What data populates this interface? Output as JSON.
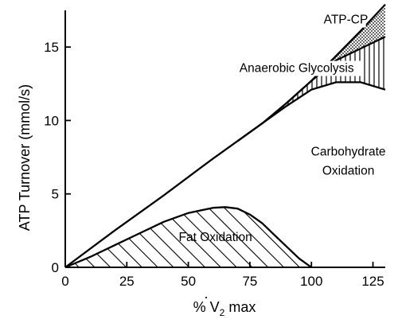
{
  "chart_data": {
    "type": "area",
    "title": "",
    "xlabel": "% V̇O2 max",
    "xlabel_parts": {
      "prefix": "% ",
      "symbol": "V",
      "subscript": "2",
      "suffix": " max"
    },
    "ylabel": "ATP Turnover (mmol/s)",
    "xlim": [
      0,
      130
    ],
    "ylim": [
      0,
      17.5
    ],
    "x_ticks": [
      0,
      25,
      50,
      75,
      100,
      125
    ],
    "y_ticks": [
      0,
      5,
      10,
      15
    ],
    "grid": false,
    "legend": "none",
    "fill_patterns": {
      "Fat Oxidation": "hatch-diagonal",
      "Carbohydrate Oxidation": "none",
      "Anaerobic Glycolysis": "hatch-vertical",
      "ATP-CP": "stipple"
    },
    "series": [
      {
        "name": "Fat Oxidation",
        "x": [
          0,
          10,
          20,
          30,
          40,
          50,
          60,
          65,
          70,
          75,
          80,
          85,
          90,
          95,
          100
        ],
        "y": [
          0,
          0.7,
          1.5,
          2.3,
          3.1,
          3.7,
          4.05,
          4.1,
          4.0,
          3.6,
          3.0,
          2.2,
          1.4,
          0.6,
          0
        ]
      },
      {
        "name": "Carbohydrate Oxidation",
        "x": [
          0,
          20,
          40,
          60,
          80,
          90,
          100,
          110,
          120,
          130
        ],
        "y": [
          0,
          2.5,
          4.9,
          7.4,
          9.8,
          11.0,
          12.1,
          12.6,
          12.6,
          12.1
        ]
      },
      {
        "name": "Anaerobic Glycolysis",
        "x": [
          70,
          80,
          90,
          100,
          110,
          120,
          130
        ],
        "y": [
          8.6,
          9.8,
          11.2,
          12.7,
          14.1,
          14.9,
          15.7
        ]
      },
      {
        "name": "ATP-CP",
        "x": [
          90,
          100,
          110,
          120,
          130
        ],
        "y": [
          11.2,
          12.7,
          14.4,
          16.1,
          17.9
        ]
      }
    ],
    "annotations": [
      {
        "label": "ATP-CP",
        "x": 114,
        "y": 16.6
      },
      {
        "label": "Anaerobic Glycolysis",
        "x": 94,
        "y": 13.3
      },
      {
        "label": "Carbohydrate",
        "x": 115,
        "y": 7.6
      },
      {
        "label": "Oxidation",
        "x": 115,
        "y": 6.3
      },
      {
        "label": "Fat Oxidation",
        "x": 61,
        "y": 1.8
      }
    ]
  }
}
